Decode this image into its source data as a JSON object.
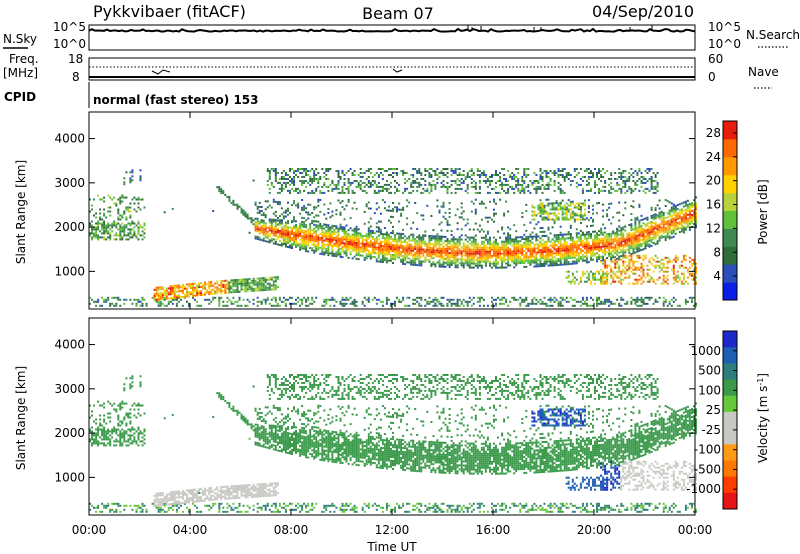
{
  "header": {
    "station": "Pykkvibaer (fitACF)",
    "beam": "Beam 07",
    "date": "04/Sep/2010"
  },
  "nsky_panel": {
    "left_label": "N.Sky",
    "left_ticks": [
      "10^5",
      "10^0"
    ],
    "right_ticks": [
      "10^5",
      "10^0"
    ],
    "right_label": "N.Search"
  },
  "freq_panel": {
    "label_top": "Freq.",
    "label_unit": "[MHz]",
    "left_ticks": [
      "18",
      "8"
    ],
    "right_ticks": [
      "60",
      "0"
    ],
    "right_label": "Nave"
  },
  "cpid": {
    "label": "CPID",
    "value": "normal (fast stereo) 153"
  },
  "colors": {
    "power_scale": [
      "#0a1ee6",
      "#2a4fb8",
      "#2f6e3a",
      "#3e8a50",
      "#5fc03c",
      "#b8d23a",
      "#ffd200",
      "#ff9a00",
      "#ff6a00",
      "#e61e0a"
    ],
    "velocity_scale": [
      "#1e28c8",
      "#1e5fb4",
      "#2d7d7d",
      "#3a9a4a",
      "#66c83c",
      "#c8c8c4",
      "#c8c8c4",
      "#ff9a14",
      "#ff7800",
      "#ff3c00",
      "#e61414"
    ],
    "gray": "#c8c8c4"
  },
  "chart_data": [
    {
      "type": "heatmap",
      "name": "power",
      "ylabel": "Slant Range [km]",
      "yticks": [
        1000,
        2000,
        3000,
        4000
      ],
      "ylim": [
        150,
        4600
      ],
      "xlim": [
        0,
        24
      ],
      "xticks": [
        "00:00",
        "04:00",
        "08:00",
        "12:00",
        "16:00",
        "20:00",
        "00:00"
      ],
      "colorbar_label": "Power [dB]",
      "colorbar_ticks": [
        4,
        8,
        12,
        16,
        20,
        24,
        28
      ],
      "colorbar_range": [
        0,
        30
      ],
      "regions": [
        {
          "desc": "main band",
          "t": [
            6.5,
            24
          ],
          "range_start": 1900,
          "range_end": 2000,
          "center_dip": 1400,
          "power": 24
        },
        {
          "desc": "upper scatter",
          "t": [
            7.0,
            22.5
          ],
          "range": [
            2600,
            3300
          ],
          "power": 6
        },
        {
          "desc": "early band",
          "t": [
            0,
            2.2
          ],
          "range": [
            1700,
            2700
          ],
          "power": 8
        },
        {
          "desc": "near-range echo",
          "t": [
            2.5,
            5.5
          ],
          "range": [
            350,
            700
          ],
          "power": 22
        },
        {
          "desc": "late patches",
          "t": [
            19.5,
            24
          ],
          "range": [
            700,
            1400
          ],
          "power": 26
        }
      ]
    },
    {
      "type": "heatmap",
      "name": "velocity",
      "ylabel": "Slant Range [km]",
      "yticks": [
        1000,
        2000,
        3000,
        4000
      ],
      "ylim": [
        150,
        4600
      ],
      "xlim": [
        0,
        24
      ],
      "xticks": [
        "00:00",
        "04:00",
        "08:00",
        "12:00",
        "16:00",
        "20:00",
        "00:00"
      ],
      "xlabel": "Time UT",
      "colorbar_label": "Velocity [m s^-1]",
      "colorbar_ticks": [
        1000,
        500,
        100,
        25,
        -25,
        -100,
        -500,
        -1000
      ],
      "regions": [
        {
          "desc": "ground scatter band",
          "t": [
            6.5,
            24
          ],
          "velocity": 0
        },
        {
          "desc": "near-range echo",
          "t": [
            2.5,
            7.5
          ],
          "range": [
            350,
            700
          ],
          "velocity": -150
        },
        {
          "desc": "positive patch",
          "t": [
            17.5,
            19.5
          ],
          "range": [
            2200,
            2500
          ],
          "velocity": 300
        },
        {
          "desc": "late negative patch",
          "t": [
            20.5,
            24
          ],
          "range": [
            800,
            1300
          ],
          "velocity": -300
        }
      ]
    }
  ],
  "axes": {
    "ylabel": "Slant Range [km]",
    "xlabel": "Time UT",
    "power_cb_label": "Power [dB]",
    "velocity_cb_label": "Velocity [m s",
    "velocity_cb_sup": "-1",
    "velocity_cb_close": "]"
  }
}
